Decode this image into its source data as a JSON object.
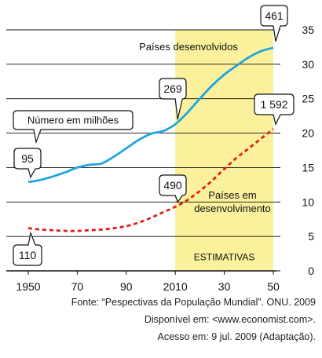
{
  "chart_data": {
    "type": "line",
    "title": "",
    "xlabel": "",
    "ylabel": "",
    "xlim": [
      1950,
      2050
    ],
    "ylim": [
      0,
      35
    ],
    "x_ticks": [
      "1950",
      "70",
      "90",
      "2010",
      "30",
      "50"
    ],
    "y_ticks": [
      "0",
      "5",
      "10",
      "15",
      "20",
      "25",
      "30",
      "35"
    ],
    "grid": "horizontal",
    "shaded_region": {
      "x": [
        2010,
        2050
      ],
      "label": "ESTIMATIVAS",
      "color": "#fbf09c"
    },
    "series": [
      {
        "name": "Países desenvolvidos",
        "color": "#1fa5e0",
        "style": "solid",
        "x": [
          1950,
          1955,
          1960,
          1965,
          1970,
          1975,
          1980,
          1985,
          1990,
          1995,
          2000,
          2005,
          2010,
          2015,
          2020,
          2025,
          2030,
          2035,
          2040,
          2045,
          2050
        ],
        "values": [
          12.9,
          13.2,
          13.7,
          14.3,
          15.0,
          15.4,
          15.6,
          16.6,
          17.8,
          19.0,
          19.9,
          20.3,
          21.3,
          23.0,
          25.0,
          26.9,
          28.5,
          29.8,
          31.0,
          31.9,
          32.4
        ]
      },
      {
        "name": "Países em desenvolvimento",
        "color": "#e21b1b",
        "style": "dashed",
        "x": [
          1950,
          1955,
          1960,
          1965,
          1970,
          1975,
          1980,
          1985,
          1990,
          1995,
          2000,
          2005,
          2010,
          2015,
          2020,
          2025,
          2030,
          2035,
          2040,
          2045,
          2050
        ],
        "values": [
          6.2,
          6.0,
          5.9,
          5.8,
          5.8,
          5.9,
          6.0,
          6.2,
          6.5,
          7.0,
          7.7,
          8.5,
          9.3,
          10.3,
          11.6,
          13.1,
          14.8,
          16.4,
          17.8,
          19.2,
          20.6
        ]
      }
    ],
    "series_labels": [
      {
        "text": "Países desenvolvidos",
        "lines": [
          "Países desenvolvidos"
        ]
      },
      {
        "text": "Países em desenvolvimento",
        "lines": [
          "Países em",
          "desenvolvimento"
        ]
      }
    ],
    "annotations": [
      {
        "label": "Número em milhões"
      },
      {
        "label": "95",
        "x": 1950,
        "y": 12.9
      },
      {
        "label": "110",
        "x": 1950,
        "y": 6.2
      },
      {
        "label": "269",
        "x": 2010,
        "y": 21.3
      },
      {
        "label": "490",
        "x": 2010,
        "y": 9.3
      },
      {
        "label": "461",
        "x": 2050,
        "y": 32.4
      },
      {
        "label": "1 592",
        "x": 2050,
        "y": 20.6
      }
    ]
  },
  "source": {
    "line1": "Fonte: “Pespectivas da População Mundial”. ONU. 2009",
    "line2": "Disponível em: <www.economist.com>.",
    "line3": "Acesso em: 9 jul. 2009 (Adaptação)."
  }
}
